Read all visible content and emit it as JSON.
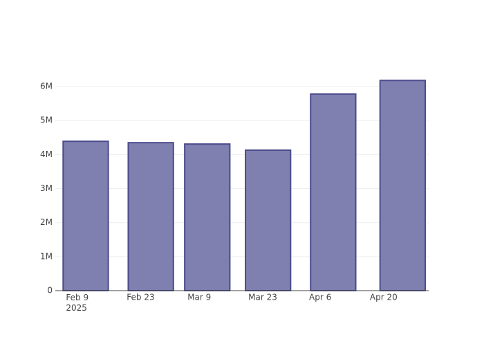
{
  "chart_data": {
    "type": "bar",
    "x": [
      "2025-02-11",
      "2025-02-26",
      "2025-03-11",
      "2025-03-25",
      "2025-04-09",
      "2025-04-25"
    ],
    "values": [
      4390000,
      4350000,
      4310000,
      4130000,
      5780000,
      6180000
    ],
    "color": "#7f7fb0",
    "edge_color": "#4b4b8c",
    "xlim": [
      "2025-02-04",
      "2025-05-01"
    ],
    "xticks": [
      {
        "value": "2025-02-09",
        "label": "Feb 9\n2025"
      },
      {
        "value": "2025-02-23",
        "label": "Feb 23"
      },
      {
        "value": "2025-03-09",
        "label": "Mar 9"
      },
      {
        "value": "2025-03-23",
        "label": "Mar 23"
      },
      {
        "value": "2025-04-06",
        "label": "Apr 6"
      },
      {
        "value": "2025-04-20",
        "label": "Apr 20"
      }
    ],
    "ylim": [
      0,
      6510000
    ],
    "yticks": [
      0,
      {
        "value": 1000000,
        "label": "1M"
      },
      {
        "value": 2000000,
        "label": "2M"
      },
      {
        "value": 3000000,
        "label": "3M"
      },
      {
        "value": 4000000,
        "label": "4M"
      },
      {
        "value": 5000000,
        "label": "5M"
      },
      {
        "value": 6000000,
        "label": "6M"
      }
    ],
    "grid": true
  }
}
